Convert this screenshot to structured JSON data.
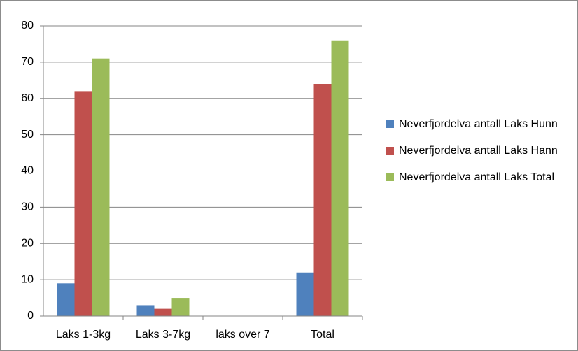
{
  "chart_data": {
    "type": "bar",
    "categories": [
      "Laks 1-3kg",
      "Laks 3-7kg",
      "laks over 7",
      "Total"
    ],
    "series": [
      {
        "name": "Neverfjordelva antall Laks Hunn",
        "color": "#4f81bd",
        "values": [
          9,
          3,
          0,
          12
        ]
      },
      {
        "name": "Neverfjordelva antall Laks Hann",
        "color": "#c0504d",
        "values": [
          62,
          2,
          0,
          64
        ]
      },
      {
        "name": "Neverfjordelva antall Laks Total",
        "color": "#9bbb59",
        "values": [
          71,
          5,
          0,
          76
        ]
      }
    ],
    "ylim": [
      0,
      80
    ],
    "yticks": [
      0,
      10,
      20,
      30,
      40,
      50,
      60,
      70,
      80
    ],
    "grid": true,
    "legend": "right"
  }
}
